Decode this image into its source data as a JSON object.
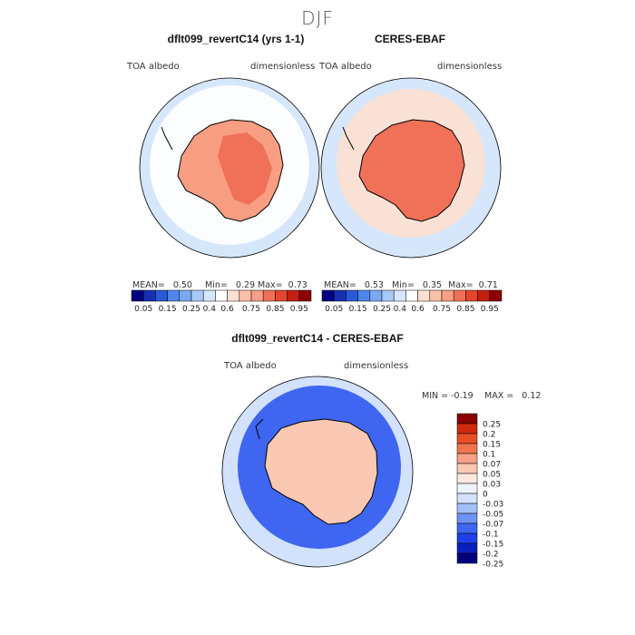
{
  "page_title": "DJF",
  "palette": {
    "abs": [
      "#000080",
      "#1530b0",
      "#2a5ad8",
      "#4f86ec",
      "#7aa8f2",
      "#a8c8f6",
      "#d6e7fb",
      "#ffffff",
      "#fde0d0",
      "#fcc0a8",
      "#f89e82",
      "#f07058",
      "#e4452e",
      "#c41f12",
      "#8b0000"
    ],
    "diff": [
      "#000080",
      "#0a1fbd",
      "#1f3fe8",
      "#3e66f0",
      "#6e93f4",
      "#a3bff8",
      "#d2e1fc",
      "#eef4fe",
      "#fde8de",
      "#fbc8b4",
      "#f6a186",
      "#f0754f",
      "#e84e26",
      "#d02a0e",
      "#8b0000"
    ]
  },
  "chart_data": [
    {
      "type": "heatmap",
      "panel": "model",
      "title": "dflt099_revertC14 (yrs 1-1)",
      "left_label": "TOA albedo",
      "right_label": "dimensionless",
      "stats": {
        "mean_label": "MEAN=",
        "mean": "0.50",
        "min_label": "Min=",
        "min": "0.29",
        "max_label": "Max=",
        "max": "0.73"
      },
      "colorbar_levels": [
        "0.05",
        "0.15",
        "0.25",
        "0.4",
        "0.6",
        "0.75",
        "0.85",
        "0.95"
      ],
      "field": {
        "ocean": 0.35,
        "ice_ring": 0.45,
        "continent": 0.68,
        "plateau": 0.72
      }
    },
    {
      "type": "heatmap",
      "panel": "obs",
      "title": "CERES-EBAF",
      "left_label": "TOA albedo",
      "right_label": "dimensionless",
      "stats": {
        "mean_label": "MEAN=",
        "mean": "0.53",
        "min_label": "Min=",
        "min": "0.35",
        "max_label": "Max=",
        "max": "0.71"
      },
      "colorbar_levels": [
        "0.05",
        "0.15",
        "0.25",
        "0.4",
        "0.6",
        "0.75",
        "0.85",
        "0.95"
      ],
      "field": {
        "ocean": 0.35,
        "ice_ring": 0.5,
        "continent": 0.7,
        "plateau": 0.72
      }
    },
    {
      "type": "heatmap",
      "panel": "diff",
      "title": "dflt099_revertC14 - CERES-EBAF",
      "left_label": "TOA albedo",
      "right_label": "dimensionless",
      "stats": {
        "min_label": "MIN =",
        "min": "-0.19",
        "max_label": "MAX =",
        "max": "0.12"
      },
      "colorbar_levels": [
        "0.25",
        "0.2",
        "0.15",
        "0.1",
        "0.07",
        "0.05",
        "0.03",
        "0",
        "-0.03",
        "-0.05",
        "-0.07",
        "-0.1",
        "-0.15",
        "-0.2",
        "-0.25"
      ],
      "field": {
        "outer": -0.04,
        "ice_ring": -0.12,
        "continent": 0.03
      }
    }
  ]
}
